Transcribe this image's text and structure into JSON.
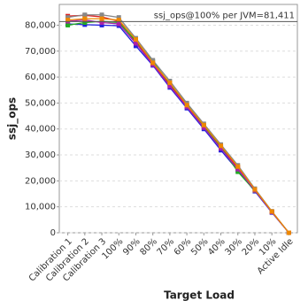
{
  "chart_data": {
    "type": "line",
    "x_label": "Target Load",
    "y_label": "ssj_ops",
    "categories": [
      "Calibration 1",
      "Calibration 2",
      "Calibration 3",
      "100%",
      "90%",
      "80%",
      "70%",
      "60%",
      "50%",
      "40%",
      "30%",
      "20%",
      "10%",
      "Active Idle"
    ],
    "series": [
      {
        "color": "#2222dd",
        "values": [
          80500,
          80200,
          80000,
          79800,
          72000,
          64500,
          56000,
          48000,
          40000,
          31800,
          24000,
          16000,
          7800,
          0
        ]
      },
      {
        "color": "#dd2222",
        "values": [
          83500,
          83800,
          83200,
          81500,
          73500,
          65000,
          57000,
          49000,
          41000,
          33000,
          25000,
          16500,
          8000,
          0
        ]
      },
      {
        "color": "#22aa22",
        "values": [
          80000,
          81000,
          81500,
          81000,
          74000,
          66000,
          57500,
          49500,
          41200,
          33200,
          23500,
          16200,
          8100,
          0
        ]
      },
      {
        "color": "#888888",
        "values": [
          83000,
          84000,
          84000,
          83000,
          75000,
          66500,
          58500,
          50000,
          42000,
          34000,
          26000,
          17000,
          8300,
          0
        ]
      },
      {
        "color": "#aa22aa",
        "values": [
          81500,
          82000,
          81000,
          80500,
          73000,
          64800,
          56500,
          48500,
          40500,
          32500,
          24500,
          16300,
          8000,
          0
        ]
      },
      {
        "color": "#ee8800",
        "values": [
          82000,
          82500,
          82500,
          82000,
          74500,
          65500,
          57800,
          49200,
          41500,
          33500,
          25500,
          16700,
          8200,
          0
        ]
      }
    ],
    "ylim": [
      0,
      88000
    ],
    "yticks": [
      0,
      {
        "value": 10000,
        "label": "10,000"
      },
      {
        "value": 20000,
        "label": "20,000"
      },
      {
        "value": 30000,
        "label": "30,000"
      },
      {
        "value": 40000,
        "label": "40,000"
      },
      {
        "value": 50000,
        "label": "50,000"
      },
      {
        "value": 60000,
        "label": "60,000"
      },
      {
        "value": 70000,
        "label": "70,000"
      },
      {
        "value": 80000,
        "label": "80,000"
      }
    ],
    "reference_line": {
      "value": 81411,
      "label": "ssj_ops@100% per JVM=81,411"
    },
    "grid": true
  }
}
